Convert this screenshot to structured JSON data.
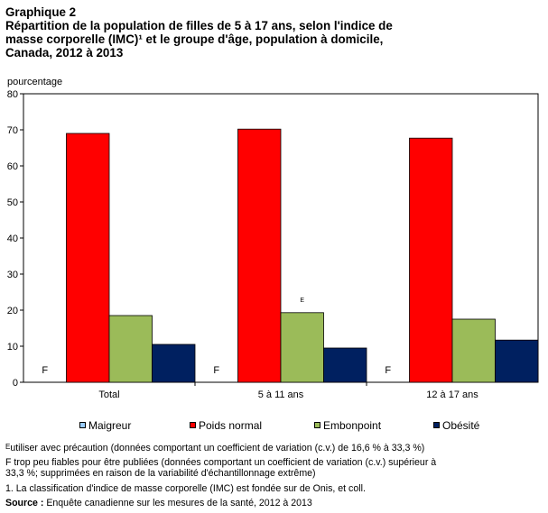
{
  "title": {
    "line1": "Graphique 2",
    "line2": "Répartition de la population de filles de 5 à 17 ans, selon l'indice de",
    "line3": "masse corporelle (IMC)¹ et le groupe d'âge, population à domicile,",
    "line4": "Canada, 2012 à 2013"
  },
  "chart_data": {
    "type": "bar",
    "ylabel": "pourcentage",
    "ylim": [
      0,
      80
    ],
    "yticks": [
      0,
      10,
      20,
      30,
      40,
      50,
      60,
      70,
      80
    ],
    "grid": false,
    "legend_position": "bottom",
    "categories": [
      "Total",
      "5 à 11 ans",
      "12 à 17 ans"
    ],
    "series": [
      {
        "name": "Maigreur",
        "color": "#99ccff",
        "values": [
          null,
          null,
          null
        ],
        "labels": [
          "F",
          "F",
          "F"
        ]
      },
      {
        "name": "Poids normal",
        "color": "#ff0000",
        "values": [
          69,
          70.2,
          67.7
        ],
        "labels": [
          "",
          "",
          ""
        ]
      },
      {
        "name": "Embonpoint",
        "color": "#9bbb59",
        "values": [
          18.5,
          19.3,
          17.5
        ],
        "labels": [
          "",
          "E",
          ""
        ]
      },
      {
        "name": "Obésité",
        "color": "#002060",
        "values": [
          10.5,
          9.5,
          11.7
        ],
        "labels": [
          "",
          "",
          ""
        ]
      }
    ]
  },
  "notes": {
    "e_marker": "E",
    "e_note": "utiliser avec précaution (données comportant un coefficient de variation (c.v.) de 16,6 % à 33,3 %)",
    "f_note_line1": "F trop peu fiables pour être publiées (données comportant un coefficient de variation (c.v.) supérieur à",
    "f_note_line2": "33,3 %; supprimées en raison de la variabilité d'échantillonnage extrême)",
    "footnote1": "1. La classification d'indice de masse corporelle (IMC) est fondée sur de Onis, et coll.",
    "source_label": "Source :",
    "source_text": " Enquête canadienne sur les mesures de la santé, 2012 à 2013"
  }
}
